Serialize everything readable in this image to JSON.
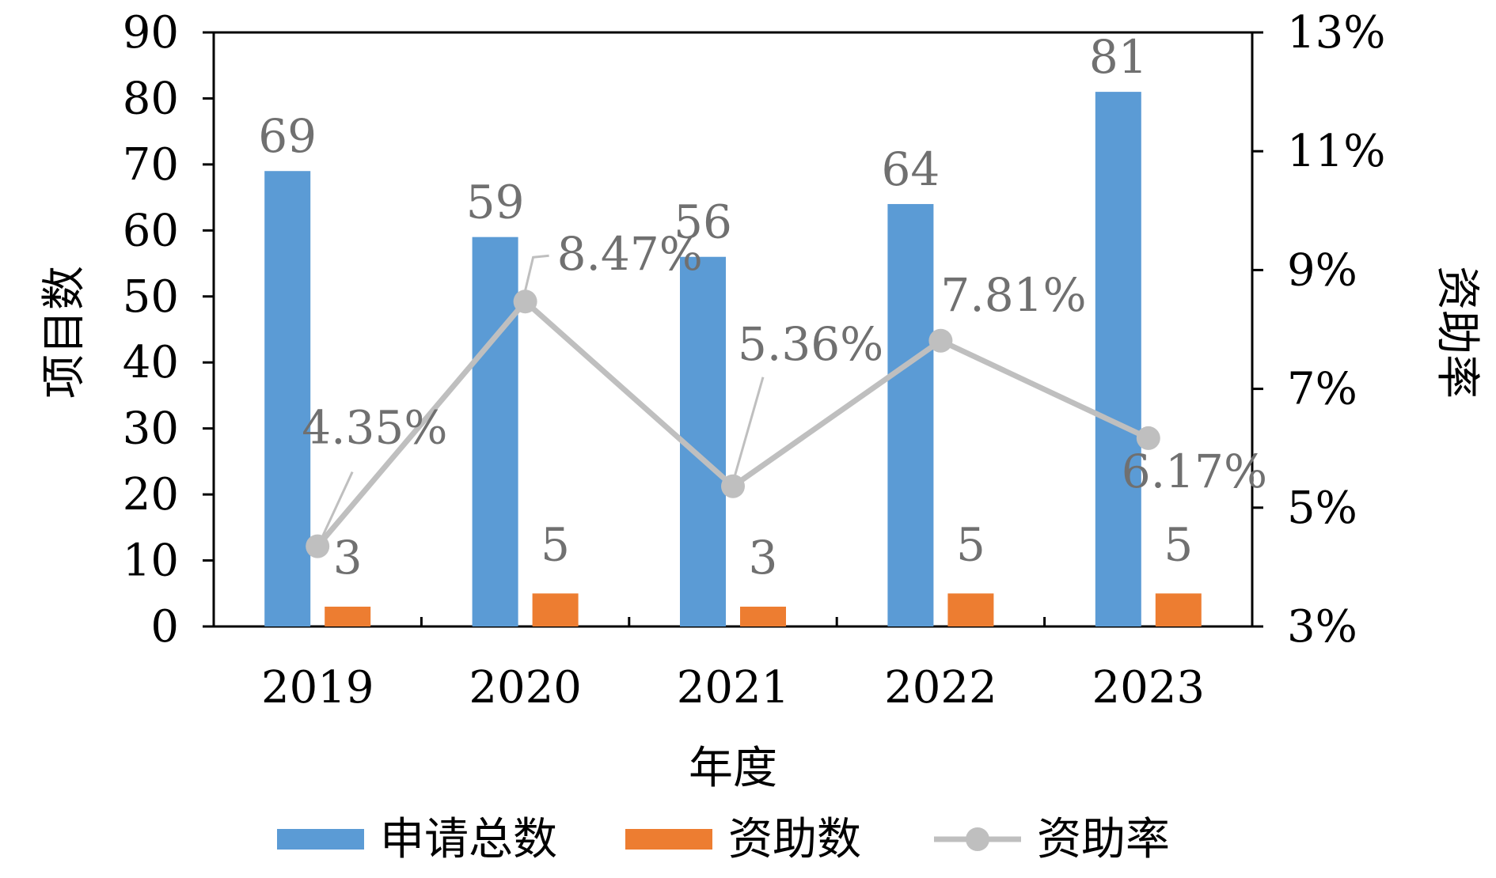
{
  "chart_data": {
    "type": "bar",
    "categories": [
      "2019",
      "2020",
      "2021",
      "2022",
      "2023"
    ],
    "series": [
      {
        "name": "申请总数",
        "type": "bar",
        "axis": "left",
        "color": "#5B9BD5",
        "values": [
          69,
          59,
          56,
          64,
          81
        ],
        "labels": [
          "69",
          "59",
          "56",
          "64",
          "81"
        ]
      },
      {
        "name": "资助数",
        "type": "bar",
        "axis": "left",
        "color": "#ED7D31",
        "values": [
          3,
          5,
          3,
          5,
          5
        ],
        "labels": [
          "3",
          "5",
          "3",
          "5",
          "5"
        ]
      },
      {
        "name": "资助率",
        "type": "line",
        "axis": "right",
        "color": "#BFBFBF",
        "values": [
          4.35,
          8.47,
          5.36,
          7.81,
          6.17
        ],
        "labels": [
          "4.35%",
          "8.47%",
          "5.36%",
          "7.81%",
          "6.17%"
        ]
      }
    ],
    "xlabel": "年度",
    "ylabel": "项目数",
    "y2label": "资助率",
    "ylim": [
      0,
      90
    ],
    "y2lim": [
      3,
      13
    ],
    "yticks": [
      "0",
      "10",
      "20",
      "30",
      "40",
      "50",
      "60",
      "70",
      "80",
      "90"
    ],
    "y2ticks": [
      "3%",
      "5%",
      "7%",
      "9%",
      "11%",
      "13%"
    ],
    "grid": false,
    "legend": "bottom"
  }
}
